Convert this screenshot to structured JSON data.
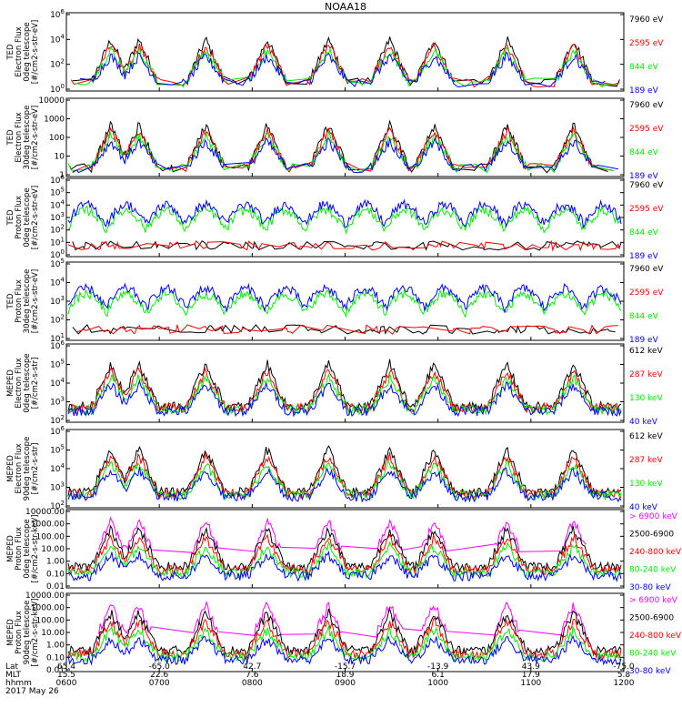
{
  "title": "NOAA18",
  "colors": {
    "black": "#000000",
    "red": "#ff0000",
    "green": "#00ee00",
    "blue": "#0000ff",
    "magenta": "#ff00ff"
  },
  "chart_data": [
    {
      "type": "scatter",
      "ylabel": [
        "TED",
        "Electron Flux",
        "0deg telescope",
        "[#/cm2-s-str-eV]"
      ],
      "ytick_labels": [
        "10^0",
        "10^2",
        "10^4",
        "10^6"
      ],
      "ylog": [
        0,
        6
      ],
      "series": [
        {
          "name": "7960 eV",
          "color": "#000000"
        },
        {
          "name": "2595 eV",
          "color": "#ff0000"
        },
        {
          "name": "844 eV",
          "color": "#00ee00"
        },
        {
          "name": "189 eV",
          "color": "#0000ff"
        }
      ]
    },
    {
      "type": "scatter",
      "ylabel": [
        "TED",
        "Electron Flux",
        "30deg telescope",
        "[#/cm2-s-str-eV]"
      ],
      "ytick_labels": [
        "1",
        "10",
        "100",
        "1000",
        "10000"
      ],
      "ylog": [
        0,
        4
      ],
      "series": [
        {
          "name": "7960 eV",
          "color": "#000000"
        },
        {
          "name": "2595 eV",
          "color": "#ff0000"
        },
        {
          "name": "844 eV",
          "color": "#00ee00"
        },
        {
          "name": "189 eV",
          "color": "#0000ff"
        }
      ]
    },
    {
      "type": "scatter",
      "ylabel": [
        "TED",
        "Proton Flux",
        "0deg telescope",
        "[#/cm2-s-str-eV]"
      ],
      "ytick_labels": [
        "10^0",
        "10^1",
        "10^2",
        "10^3",
        "10^4",
        "10^5",
        "10^6"
      ],
      "ylog": [
        0,
        6
      ],
      "series": [
        {
          "name": "7960 eV",
          "color": "#000000"
        },
        {
          "name": "2595 eV",
          "color": "#ff0000"
        },
        {
          "name": "844 eV",
          "color": "#00ee00"
        },
        {
          "name": "189 eV",
          "color": "#0000ff"
        }
      ]
    },
    {
      "type": "scatter",
      "ylabel": [
        "TED",
        "Proton Flux",
        "30deg telescope",
        "[#/cm2-s-str-eV]"
      ],
      "ytick_labels": [
        "10^1",
        "10^2",
        "10^3",
        "10^4",
        "10^5"
      ],
      "ylog": [
        0,
        6
      ],
      "series": [
        {
          "name": "7960 eV",
          "color": "#000000"
        },
        {
          "name": "2595 eV",
          "color": "#ff0000"
        },
        {
          "name": "844 eV",
          "color": "#00ee00"
        },
        {
          "name": "189 eV",
          "color": "#0000ff"
        }
      ]
    },
    {
      "type": "scatter",
      "ylabel": [
        "MEPED",
        "Electron Flux",
        "0deg telescope",
        "[#/cm2-s-str]"
      ],
      "ytick_labels": [
        "10^2",
        "10^3",
        "10^4",
        "10^5",
        "10^6"
      ],
      "ylog": [
        1.5,
        6
      ],
      "series": [
        {
          "name": "612 keV",
          "color": "#000000"
        },
        {
          "name": "287 keV",
          "color": "#ff0000"
        },
        {
          "name": "130 keV",
          "color": "#00ee00"
        },
        {
          "name": "40 keV",
          "color": "#0000ff"
        }
      ]
    },
    {
      "type": "scatter",
      "ylabel": [
        "MEPED",
        "Electron Flux",
        "90deg telescope",
        "[#/cm2-s-str]"
      ],
      "ytick_labels": [
        "10^2",
        "10^3",
        "10^4",
        "10^5",
        "10^6"
      ],
      "ylog": [
        1.5,
        6
      ],
      "series": [
        {
          "name": "612 keV",
          "color": "#000000"
        },
        {
          "name": "287 keV",
          "color": "#ff0000"
        },
        {
          "name": "130 keV",
          "color": "#00ee00"
        },
        {
          "name": "40 keV",
          "color": "#0000ff"
        }
      ]
    },
    {
      "type": "scatter",
      "ylabel": [
        "MEPED",
        "Proton Flux",
        "0deg telescope",
        "[#/cm2-s-str-keV]"
      ],
      "ytick_labels": [
        "0.01",
        "0.10",
        "1.00",
        "10.00",
        "100.00",
        "1000.00",
        "10000.00"
      ],
      "ylog": [
        -2,
        4.3
      ],
      "series": [
        {
          "name": "> 6900 keV",
          "color": "#ff00ff"
        },
        {
          "name": "2500-6900",
          "color": "#000000"
        },
        {
          "name": "240-800 keV",
          "color": "#ff0000"
        },
        {
          "name": "80-240 keV",
          "color": "#00ee00"
        },
        {
          "name": "30-80 keV",
          "color": "#0000ff"
        }
      ]
    },
    {
      "type": "scatter",
      "ylabel": [
        "MEPED",
        "Proton Flux",
        "90deg telescope",
        "[#/cm2-s-str-keV]"
      ],
      "ytick_labels": [
        "0.01",
        "0.10",
        "1.00",
        "10.00",
        "100.00",
        "1000.00",
        "10000.00"
      ],
      "ylog": [
        -2,
        4.3
      ],
      "series": [
        {
          "name": "> 6900 keV",
          "color": "#ff00ff"
        },
        {
          "name": "2500-6900",
          "color": "#000000"
        },
        {
          "name": "240-800 keV",
          "color": "#ff0000"
        },
        {
          "name": "80-240 keV",
          "color": "#00ee00"
        },
        {
          "name": "30-80 keV",
          "color": "#0000ff"
        }
      ]
    }
  ],
  "xaxis": {
    "row_labels": [
      "Lat",
      "MLT",
      "hhmm"
    ],
    "date": "2017 May 26",
    "ticks": [
      {
        "lat": "65.4",
        "mlt": "15.5",
        "hhmm": "0600"
      },
      {
        "lat": "-65.0",
        "mlt": "22.6",
        "hhmm": "0700"
      },
      {
        "lat": "42.7",
        "mlt": "7.6",
        "hhmm": "0800"
      },
      {
        "lat": "-15.7",
        "mlt": "18.9",
        "hhmm": "0900"
      },
      {
        "lat": "-13.9",
        "mlt": "6.1",
        "hhmm": "1000"
      },
      {
        "lat": "43.9",
        "mlt": "17.9",
        "hhmm": "1100"
      },
      {
        "lat": "-75.0",
        "mlt": "5.8",
        "hhmm": "1200"
      }
    ]
  }
}
